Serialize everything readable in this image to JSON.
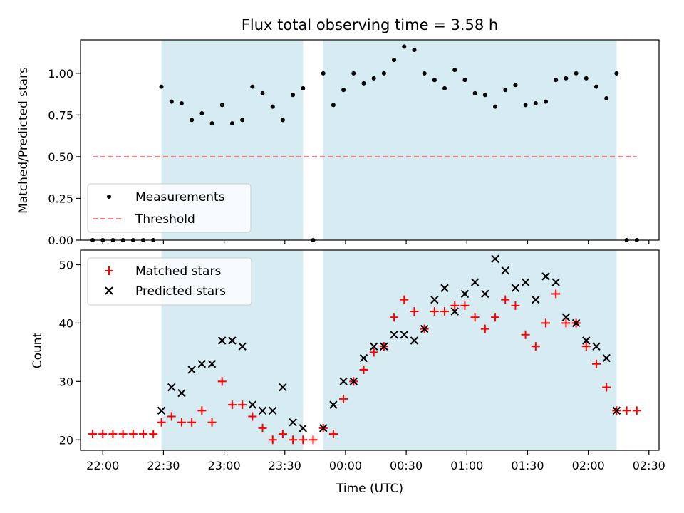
{
  "chart_data": [
    {
      "type": "scatter",
      "title": "Flux total observing time = 3.58 h",
      "ylabel": "Matched/Predicted stars",
      "xlabel": "",
      "xlim": [
        "21:49",
        "02:35"
      ],
      "ylim": [
        0,
        1.2
      ],
      "yticks": [
        "0.00",
        "0.25",
        "0.50",
        "0.75",
        "1.00"
      ],
      "shaded_intervals": [
        [
          "22:29",
          "23:39"
        ],
        [
          "23:49",
          "02:14"
        ]
      ],
      "legend": "lower-left",
      "series": [
        {
          "name": "Measurements",
          "marker": "dot",
          "color": "#000000",
          "points": [
            [
              "21:55",
              0
            ],
            [
              "21:60",
              0
            ],
            [
              "22:05",
              0
            ],
            [
              "22:10",
              0
            ],
            [
              "22:15",
              0
            ],
            [
              "22:20",
              0
            ],
            [
              "22:25",
              0
            ],
            [
              "22:29",
              0.92
            ],
            [
              "22:34",
              0.83
            ],
            [
              "22:39",
              0.82
            ],
            [
              "22:44",
              0.72
            ],
            [
              "22:49",
              0.76
            ],
            [
              "22:54",
              0.7
            ],
            [
              "22:59",
              0.81
            ],
            [
              "23:04",
              0.7
            ],
            [
              "23:09",
              0.72
            ],
            [
              "23:14",
              0.92
            ],
            [
              "23:19",
              0.88
            ],
            [
              "23:24",
              0.8
            ],
            [
              "23:29",
              0.72
            ],
            [
              "23:34",
              0.87
            ],
            [
              "23:39",
              0.91
            ],
            [
              "23:44",
              0.0
            ],
            [
              "23:49",
              1.0
            ],
            [
              "23:54",
              0.81
            ],
            [
              "23:59",
              0.9
            ],
            [
              "00:04",
              1.0
            ],
            [
              "00:09",
              0.94
            ],
            [
              "00:14",
              0.97
            ],
            [
              "00:19",
              1.0
            ],
            [
              "00:24",
              1.08
            ],
            [
              "00:29",
              1.16
            ],
            [
              "00:34",
              1.14
            ],
            [
              "00:39",
              1.0
            ],
            [
              "00:44",
              0.96
            ],
            [
              "00:49",
              0.91
            ],
            [
              "00:54",
              1.02
            ],
            [
              "00:59",
              0.96
            ],
            [
              "01:04",
              0.88
            ],
            [
              "01:09",
              0.87
            ],
            [
              "01:14",
              0.8
            ],
            [
              "01:19",
              0.9
            ],
            [
              "01:24",
              0.93
            ],
            [
              "01:29",
              0.81
            ],
            [
              "01:34",
              0.82
            ],
            [
              "01:39",
              0.83
            ],
            [
              "01:44",
              0.96
            ],
            [
              "01:49",
              0.97
            ],
            [
              "01:54",
              1.0
            ],
            [
              "01:59",
              0.97
            ],
            [
              "02:04",
              0.92
            ],
            [
              "02:09",
              0.85
            ],
            [
              "02:14",
              1.0
            ],
            [
              "02:19",
              0
            ],
            [
              "02:24",
              0
            ]
          ]
        },
        {
          "name": "Threshold",
          "marker": "dashed-line",
          "color": "#f08080",
          "points": [
            [
              "21:55",
              0.5
            ],
            [
              "02:24",
              0.5
            ]
          ]
        }
      ]
    },
    {
      "type": "scatter",
      "title": "",
      "ylabel": "Count",
      "xlabel": "Time (UTC)",
      "xlim": [
        "21:49",
        "02:35"
      ],
      "ylim": [
        18.2,
        52.5
      ],
      "yticks": [
        "20",
        "30",
        "40",
        "50"
      ],
      "xticks": [
        "22:00",
        "22:30",
        "23:00",
        "23:30",
        "00:00",
        "00:30",
        "01:00",
        "01:30",
        "02:00",
        "02:30"
      ],
      "shaded_intervals": [
        [
          "22:29",
          "23:39"
        ],
        [
          "23:49",
          "02:14"
        ]
      ],
      "legend": "top-left",
      "series": [
        {
          "name": "Matched stars",
          "marker": "plus",
          "color": "#ff0000",
          "points": [
            [
              "21:55",
              21
            ],
            [
              "21:60",
              21
            ],
            [
              "22:05",
              21
            ],
            [
              "22:10",
              21
            ],
            [
              "22:15",
              21
            ],
            [
              "22:20",
              21
            ],
            [
              "22:25",
              21
            ],
            [
              "22:29",
              23
            ],
            [
              "22:34",
              24
            ],
            [
              "22:39",
              23
            ],
            [
              "22:44",
              23
            ],
            [
              "22:49",
              25
            ],
            [
              "22:54",
              23
            ],
            [
              "22:59",
              30
            ],
            [
              "23:04",
              26
            ],
            [
              "23:09",
              26
            ],
            [
              "23:14",
              24
            ],
            [
              "23:19",
              22
            ],
            [
              "23:24",
              20
            ],
            [
              "23:29",
              21
            ],
            [
              "23:34",
              20
            ],
            [
              "23:39",
              20
            ],
            [
              "23:44",
              20
            ],
            [
              "23:49",
              22
            ],
            [
              "23:54",
              21
            ],
            [
              "23:59",
              27
            ],
            [
              "00:04",
              30
            ],
            [
              "00:09",
              32
            ],
            [
              "00:14",
              35
            ],
            [
              "00:19",
              36
            ],
            [
              "00:24",
              41
            ],
            [
              "00:29",
              44
            ],
            [
              "00:34",
              42
            ],
            [
              "00:39",
              39
            ],
            [
              "00:44",
              42
            ],
            [
              "00:49",
              42
            ],
            [
              "00:54",
              43
            ],
            [
              "00:59",
              43
            ],
            [
              "01:04",
              41
            ],
            [
              "01:09",
              39
            ],
            [
              "01:14",
              41
            ],
            [
              "01:19",
              44
            ],
            [
              "01:24",
              43
            ],
            [
              "01:29",
              38
            ],
            [
              "01:34",
              36
            ],
            [
              "01:39",
              40
            ],
            [
              "01:44",
              45
            ],
            [
              "01:49",
              40
            ],
            [
              "01:54",
              40
            ],
            [
              "01:59",
              36
            ],
            [
              "02:04",
              33
            ],
            [
              "02:09",
              29
            ],
            [
              "02:14",
              25
            ],
            [
              "02:19",
              25
            ],
            [
              "02:24",
              25
            ]
          ]
        },
        {
          "name": "Predicted stars",
          "marker": "x",
          "color": "#000000",
          "points": [
            [
              "22:29",
              25
            ],
            [
              "22:34",
              29
            ],
            [
              "22:39",
              28
            ],
            [
              "22:44",
              32
            ],
            [
              "22:49",
              33
            ],
            [
              "22:54",
              33
            ],
            [
              "22:59",
              37
            ],
            [
              "23:04",
              37
            ],
            [
              "23:09",
              36
            ],
            [
              "23:14",
              26
            ],
            [
              "23:19",
              25
            ],
            [
              "23:24",
              25
            ],
            [
              "23:29",
              29
            ],
            [
              "23:34",
              23
            ],
            [
              "23:39",
              22
            ],
            [
              "23:49",
              22
            ],
            [
              "23:54",
              26
            ],
            [
              "23:59",
              30
            ],
            [
              "00:04",
              30
            ],
            [
              "00:09",
              34
            ],
            [
              "00:14",
              36
            ],
            [
              "00:19",
              36
            ],
            [
              "00:24",
              38
            ],
            [
              "00:29",
              38
            ],
            [
              "00:34",
              37
            ],
            [
              "00:39",
              39
            ],
            [
              "00:44",
              44
            ],
            [
              "00:49",
              46
            ],
            [
              "00:54",
              42
            ],
            [
              "00:59",
              45
            ],
            [
              "01:04",
              47
            ],
            [
              "01:09",
              45
            ],
            [
              "01:14",
              51
            ],
            [
              "01:19",
              49
            ],
            [
              "01:24",
              46
            ],
            [
              "01:29",
              47
            ],
            [
              "01:34",
              44
            ],
            [
              "01:39",
              48
            ],
            [
              "01:44",
              47
            ],
            [
              "01:49",
              41
            ],
            [
              "01:54",
              40
            ],
            [
              "01:59",
              37
            ],
            [
              "02:04",
              36
            ],
            [
              "02:09",
              34
            ],
            [
              "02:14",
              25
            ]
          ]
        }
      ]
    }
  ]
}
